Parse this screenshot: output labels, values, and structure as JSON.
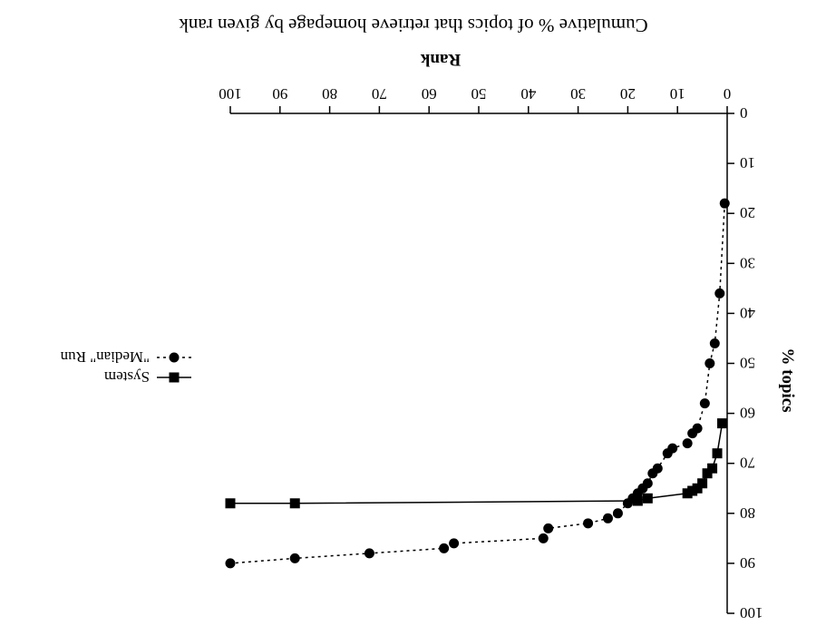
{
  "chart_data": {
    "type": "line",
    "orientation": "rotated-180",
    "title": "Cumulative % of topics that retrieve homepage by given rank",
    "xlabel": "Rank",
    "ylabel": "% topics",
    "xlim": [
      0,
      100
    ],
    "ylim": [
      0,
      100
    ],
    "xticks": [
      0,
      10,
      20,
      30,
      40,
      50,
      60,
      70,
      80,
      90,
      100
    ],
    "yticks": [
      0,
      10,
      20,
      30,
      40,
      50,
      60,
      70,
      80,
      90,
      100
    ],
    "grid": false,
    "legend_position": "right",
    "series": [
      {
        "name": "System",
        "marker": "square",
        "line_style": "solid",
        "points": [
          {
            "x": 1,
            "y": 62
          },
          {
            "x": 2,
            "y": 68
          },
          {
            "x": 3,
            "y": 71
          },
          {
            "x": 4,
            "y": 72
          },
          {
            "x": 5,
            "y": 74
          },
          {
            "x": 6,
            "y": 75
          },
          {
            "x": 7,
            "y": 75.5
          },
          {
            "x": 8,
            "y": 76
          },
          {
            "x": 16,
            "y": 77
          },
          {
            "x": 18,
            "y": 77.5
          },
          {
            "x": 87,
            "y": 78
          },
          {
            "x": 100,
            "y": 78
          }
        ]
      },
      {
        "name": "\"Median\" Run",
        "marker": "circle",
        "line_style": "dotted",
        "points": [
          {
            "x": 0.5,
            "y": 18
          },
          {
            "x": 1.5,
            "y": 36
          },
          {
            "x": 2.5,
            "y": 46
          },
          {
            "x": 3.5,
            "y": 50
          },
          {
            "x": 4.5,
            "y": 58
          },
          {
            "x": 6,
            "y": 63
          },
          {
            "x": 7,
            "y": 64
          },
          {
            "x": 8,
            "y": 66
          },
          {
            "x": 11,
            "y": 67
          },
          {
            "x": 12,
            "y": 68
          },
          {
            "x": 14,
            "y": 71
          },
          {
            "x": 15,
            "y": 72
          },
          {
            "x": 16,
            "y": 74
          },
          {
            "x": 17,
            "y": 75
          },
          {
            "x": 18,
            "y": 76
          },
          {
            "x": 19,
            "y": 77
          },
          {
            "x": 20,
            "y": 78
          },
          {
            "x": 22,
            "y": 80
          },
          {
            "x": 24,
            "y": 81
          },
          {
            "x": 28,
            "y": 82
          },
          {
            "x": 36,
            "y": 83
          },
          {
            "x": 37,
            "y": 85
          },
          {
            "x": 55,
            "y": 86
          },
          {
            "x": 57,
            "y": 87
          },
          {
            "x": 72,
            "y": 88
          },
          {
            "x": 87,
            "y": 89
          },
          {
            "x": 100,
            "y": 90
          }
        ]
      }
    ]
  }
}
